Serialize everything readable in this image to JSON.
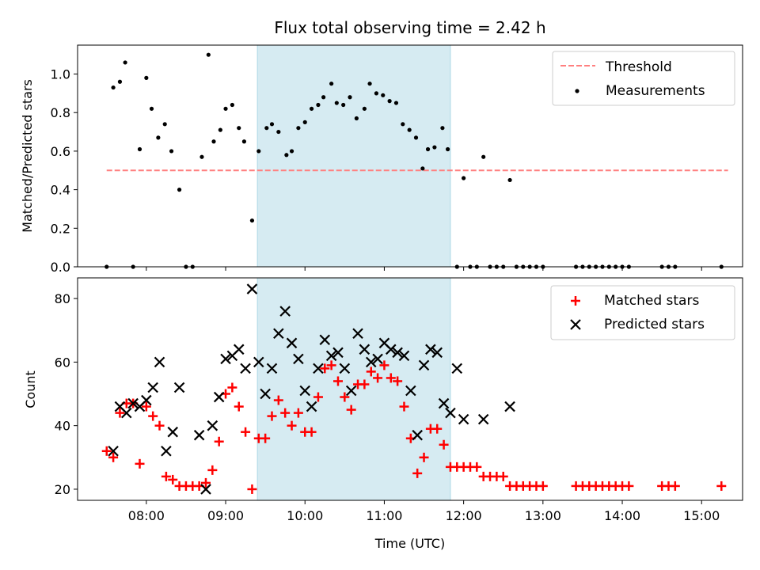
{
  "title": "Flux total observing time = 2.42 h",
  "xlabel": "Time (UTC)",
  "x_ticks": [
    "08:00",
    "09:00",
    "10:00",
    "11:00",
    "12:00",
    "13:00",
    "14:00",
    "15:00"
  ],
  "shaded_region": {
    "start": "09:24",
    "end": "11:50",
    "color": "#add8e6"
  },
  "chart_data": [
    {
      "type": "scatter",
      "ylabel": "Matched/Predicted stars",
      "ylim": [
        0,
        1.15
      ],
      "yticks": [
        "0.0",
        "0.2",
        "0.4",
        "0.6",
        "0.8",
        "1.0"
      ],
      "legend_position": "top-right",
      "threshold": {
        "name": "Threshold",
        "y": 0.5,
        "x_range": [
          "07:30",
          "15:20"
        ],
        "color": "#ff7f7f"
      },
      "series": [
        {
          "name": "Measurements",
          "color": "#000000",
          "x": [
            "07:30",
            "07:35",
            "07:40",
            "07:44",
            "07:50",
            "07:55",
            "08:00",
            "08:04",
            "08:09",
            "08:14",
            "08:19",
            "08:25",
            "08:30",
            "08:35",
            "08:42",
            "08:47",
            "08:51",
            "08:56",
            "09:00",
            "09:05",
            "09:10",
            "09:14",
            "09:20",
            "09:25",
            "09:31",
            "09:35",
            "09:40",
            "09:46",
            "09:50",
            "09:55",
            "10:00",
            "10:05",
            "10:10",
            "10:14",
            "10:20",
            "10:24",
            "10:29",
            "10:34",
            "10:39",
            "10:45",
            "10:49",
            "10:54",
            "10:59",
            "11:04",
            "11:09",
            "11:14",
            "11:19",
            "11:24",
            "11:29",
            "11:33",
            "11:38",
            "11:44",
            "11:48",
            "11:55",
            "12:00",
            "12:05",
            "12:10",
            "12:15",
            "12:20",
            "12:25",
            "12:30",
            "12:35",
            "12:40",
            "12:45",
            "12:50",
            "12:55",
            "13:00",
            "13:25",
            "13:30",
            "13:35",
            "13:40",
            "13:45",
            "13:50",
            "13:55",
            "14:00",
            "14:05",
            "14:30",
            "14:35",
            "14:40",
            "15:15"
          ],
          "y": [
            0.0,
            0.93,
            0.96,
            1.06,
            0.0,
            0.61,
            0.98,
            0.82,
            0.67,
            0.74,
            0.6,
            0.4,
            0.0,
            0.0,
            0.57,
            1.1,
            0.65,
            0.71,
            0.82,
            0.84,
            0.72,
            0.65,
            0.24,
            0.6,
            0.72,
            0.74,
            0.7,
            0.58,
            0.6,
            0.72,
            0.75,
            0.82,
            0.84,
            0.88,
            0.95,
            0.85,
            0.84,
            0.88,
            0.77,
            0.82,
            0.95,
            0.9,
            0.89,
            0.86,
            0.85,
            0.74,
            0.71,
            0.67,
            0.51,
            0.61,
            0.62,
            0.72,
            0.61,
            0.0,
            0.46,
            0.0,
            0.0,
            0.57,
            0.0,
            0.0,
            0.0,
            0.45,
            0.0,
            0.0,
            0.0,
            0.0,
            0.0,
            0.0,
            0.0,
            0.0,
            0.0,
            0.0,
            0.0,
            0.0,
            0.0,
            0.0,
            0.0,
            0.0,
            0.0,
            0.0
          ]
        }
      ]
    },
    {
      "type": "scatter",
      "ylabel": "Count",
      "ylim": [
        16.5,
        86.5
      ],
      "yticks": [
        "20",
        "40",
        "60",
        "80"
      ],
      "legend_position": "top-right",
      "series": [
        {
          "name": "Matched stars",
          "color": "#ff0000",
          "x": [
            "07:30",
            "07:35",
            "07:40",
            "07:45",
            "07:50",
            "07:55",
            "08:00",
            "08:05",
            "08:10",
            "08:15",
            "08:20",
            "08:25",
            "08:30",
            "08:35",
            "08:40",
            "08:45",
            "08:50",
            "08:55",
            "09:00",
            "09:05",
            "09:10",
            "09:15",
            "09:20",
            "09:25",
            "09:30",
            "09:35",
            "09:40",
            "09:45",
            "09:50",
            "09:55",
            "10:00",
            "10:05",
            "10:10",
            "10:15",
            "10:20",
            "10:25",
            "10:30",
            "10:35",
            "10:40",
            "10:45",
            "10:50",
            "10:55",
            "11:00",
            "11:05",
            "11:10",
            "11:15",
            "11:20",
            "11:25",
            "11:30",
            "11:35",
            "11:40",
            "11:45",
            "11:50",
            "11:55",
            "12:00",
            "12:05",
            "12:10",
            "12:15",
            "12:20",
            "12:25",
            "12:30",
            "12:35",
            "12:40",
            "12:45",
            "12:50",
            "12:55",
            "13:00",
            "13:25",
            "13:30",
            "13:35",
            "13:40",
            "13:45",
            "13:50",
            "13:55",
            "14:00",
            "14:05",
            "14:30",
            "14:35",
            "14:40",
            "15:15"
          ],
          "y": [
            32,
            30,
            44,
            47,
            47,
            28,
            46,
            43,
            40,
            24,
            23,
            21,
            21,
            21,
            21,
            22,
            26,
            35,
            50,
            52,
            46,
            38,
            20,
            36,
            36,
            43,
            48,
            44,
            40,
            44,
            38,
            38,
            49,
            58,
            59,
            54,
            49,
            45,
            53,
            53,
            57,
            55,
            59,
            55,
            54,
            46,
            36,
            25,
            30,
            39,
            39,
            34,
            27,
            27,
            27,
            27,
            27,
            24,
            24,
            24,
            24,
            21,
            21,
            21,
            21,
            21,
            21,
            21,
            21,
            21,
            21,
            21,
            21,
            21,
            21,
            21,
            21,
            21,
            21,
            21
          ]
        },
        {
          "name": "Predicted stars",
          "color": "#000000",
          "x": [
            "07:35",
            "07:40",
            "07:45",
            "07:50",
            "07:55",
            "08:00",
            "08:05",
            "08:10",
            "08:15",
            "08:20",
            "08:25",
            "08:40",
            "08:45",
            "08:50",
            "08:55",
            "09:00",
            "09:05",
            "09:10",
            "09:15",
            "09:20",
            "09:25",
            "09:30",
            "09:35",
            "09:40",
            "09:45",
            "09:50",
            "09:55",
            "10:00",
            "10:05",
            "10:10",
            "10:15",
            "10:20",
            "10:25",
            "10:30",
            "10:35",
            "10:40",
            "10:45",
            "10:50",
            "10:55",
            "11:00",
            "11:05",
            "11:10",
            "11:15",
            "11:20",
            "11:25",
            "11:30",
            "11:35",
            "11:40",
            "11:45",
            "11:50",
            "11:55",
            "12:00",
            "12:15",
            "12:35"
          ],
          "y": [
            32,
            46,
            44,
            47,
            46,
            48,
            52,
            60,
            32,
            38,
            52,
            37,
            20,
            40,
            49,
            61,
            62,
            64,
            58,
            83,
            60,
            50,
            58,
            69,
            76,
            66,
            61,
            51,
            46,
            58,
            67,
            62,
            63,
            58,
            51,
            69,
            64,
            60,
            61,
            66,
            64,
            63,
            62,
            51,
            37,
            59,
            64,
            63,
            47,
            44,
            58,
            42,
            42,
            46
          ]
        }
      ]
    }
  ]
}
